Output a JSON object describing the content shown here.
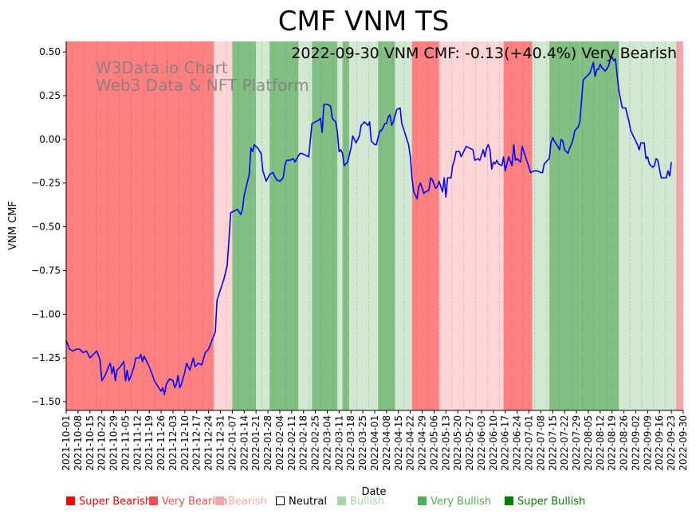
{
  "chart_data": {
    "type": "line",
    "title": "CMF VNM TS",
    "subtitle": "2022-09-30 VNM CMF: -0.13(+40.4%) Very Bearish",
    "watermark": [
      "W3Data.io Chart",
      "Web3 Data & NFT Platform"
    ],
    "xlabel": "Date",
    "ylabel": "VNM CMF",
    "ylim": [
      -1.55,
      0.56
    ],
    "yticks": [
      "0.50",
      "0.25",
      "0.00",
      "−0.25",
      "−0.50",
      "−0.75",
      "−1.00",
      "−1.25",
      "−1.50"
    ],
    "ytick_values": [
      0.5,
      0.25,
      0.0,
      -0.25,
      -0.5,
      -0.75,
      -1.0,
      -1.25,
      -1.5
    ],
    "xticks": [
      "2021-10-01",
      "2021-10-08",
      "2021-10-15",
      "2021-10-22",
      "2021-10-29",
      "2021-11-05",
      "2021-11-12",
      "2021-11-19",
      "2021-11-26",
      "2021-12-03",
      "2021-12-10",
      "2021-12-17",
      "2021-12-24",
      "2021-12-31",
      "2022-01-07",
      "2022-01-14",
      "2022-01-21",
      "2022-01-28",
      "2022-02-04",
      "2022-02-11",
      "2022-02-18",
      "2022-02-25",
      "2022-03-04",
      "2022-03-11",
      "2022-03-18",
      "2022-03-25",
      "2022-04-01",
      "2022-04-08",
      "2022-04-15",
      "2022-04-22",
      "2022-04-29",
      "2022-05-06",
      "2022-05-13",
      "2022-05-20",
      "2022-05-27",
      "2022-06-03",
      "2022-06-10",
      "2022-06-17",
      "2022-06-24",
      "2022-07-01",
      "2022-07-08",
      "2022-07-15",
      "2022-07-22",
      "2022-07-29",
      "2022-08-05",
      "2022-08-12",
      "2022-08-19",
      "2022-08-26",
      "2022-09-02",
      "2022-09-09",
      "2022-09-16",
      "2022-09-23",
      "2022-09-30"
    ],
    "x_range_days": [
      0,
      364
    ],
    "series": [
      {
        "name": "VNM CMF",
        "color": "#0000ff",
        "points": [
          [
            0,
            -1.15
          ],
          [
            2,
            -1.2
          ],
          [
            4,
            -1.21
          ],
          [
            6,
            -1.2
          ],
          [
            8,
            -1.2
          ],
          [
            10,
            -1.22
          ],
          [
            12,
            -1.21
          ],
          [
            14,
            -1.25
          ],
          [
            16,
            -1.23
          ],
          [
            18,
            -1.21
          ],
          [
            20,
            -1.26
          ],
          [
            21,
            -1.38
          ],
          [
            23,
            -1.35
          ],
          [
            25,
            -1.3
          ],
          [
            26,
            -1.28
          ],
          [
            27,
            -1.34
          ],
          [
            28,
            -1.3
          ],
          [
            29,
            -1.38
          ],
          [
            30,
            -1.32
          ],
          [
            32,
            -1.3
          ],
          [
            34,
            -1.27
          ],
          [
            35,
            -1.38
          ],
          [
            36,
            -1.32
          ],
          [
            37,
            -1.38
          ],
          [
            38,
            -1.36
          ],
          [
            40,
            -1.3
          ],
          [
            41,
            -1.25
          ],
          [
            43,
            -1.25
          ],
          [
            44,
            -1.23
          ],
          [
            45,
            -1.27
          ],
          [
            46,
            -1.24
          ],
          [
            47,
            -1.26
          ],
          [
            49,
            -1.3
          ],
          [
            51,
            -1.35
          ],
          [
            52,
            -1.38
          ],
          [
            54,
            -1.41
          ],
          [
            56,
            -1.44
          ],
          [
            57,
            -1.42
          ],
          [
            58,
            -1.46
          ],
          [
            59,
            -1.4
          ],
          [
            61,
            -1.37
          ],
          [
            63,
            -1.38
          ],
          [
            64,
            -1.42
          ],
          [
            65,
            -1.4
          ],
          [
            66,
            -1.35
          ],
          [
            67,
            -1.42
          ],
          [
            68,
            -1.4
          ],
          [
            70,
            -1.33
          ],
          [
            71,
            -1.28
          ],
          [
            72,
            -1.3
          ],
          [
            73,
            -1.32
          ],
          [
            75,
            -1.25
          ],
          [
            76,
            -1.3
          ],
          [
            78,
            -1.28
          ],
          [
            80,
            -1.29
          ],
          [
            82,
            -1.22
          ],
          [
            84,
            -1.2
          ],
          [
            86,
            -1.15
          ],
          [
            88,
            -1.1
          ],
          [
            89,
            -0.92
          ],
          [
            91,
            -0.86
          ],
          [
            93,
            -0.8
          ],
          [
            95,
            -0.72
          ],
          [
            96,
            -0.58
          ],
          [
            97,
            -0.42
          ],
          [
            99,
            -0.41
          ],
          [
            101,
            -0.4
          ],
          [
            103,
            -0.43
          ],
          [
            104,
            -0.4
          ],
          [
            105,
            -0.32
          ],
          [
            107,
            -0.24
          ],
          [
            108,
            -0.2
          ],
          [
            109,
            -0.05
          ],
          [
            110,
            -0.07
          ],
          [
            111,
            -0.03
          ],
          [
            113,
            -0.05
          ],
          [
            115,
            -0.08
          ],
          [
            116,
            -0.18
          ],
          [
            118,
            -0.24
          ],
          [
            120,
            -0.2
          ],
          [
            122,
            -0.19
          ],
          [
            124,
            -0.23
          ],
          [
            126,
            -0.24
          ],
          [
            128,
            -0.22
          ],
          [
            129,
            -0.15
          ],
          [
            130,
            -0.12
          ],
          [
            132,
            -0.12
          ],
          [
            134,
            -0.11
          ],
          [
            135,
            -0.13
          ],
          [
            136,
            -0.11
          ],
          [
            138,
            -0.08
          ],
          [
            139,
            -0.08
          ],
          [
            141,
            -0.09
          ],
          [
            143,
            -0.1
          ],
          [
            144,
            -0.01
          ],
          [
            145,
            0.09
          ],
          [
            147,
            0.1
          ],
          [
            149,
            0.11
          ],
          [
            150,
            0.12
          ],
          [
            151,
            0.04
          ],
          [
            152,
            0.2
          ],
          [
            154,
            0.2
          ],
          [
            156,
            0.19
          ],
          [
            157,
            0.12
          ],
          [
            159,
            0.1
          ],
          [
            160,
            0.04
          ],
          [
            161,
            -0.07
          ],
          [
            162,
            -0.06
          ],
          [
            163,
            -0.08
          ],
          [
            164,
            -0.15
          ],
          [
            166,
            -0.13
          ],
          [
            168,
            -0.05
          ],
          [
            169,
            0.02
          ],
          [
            171,
            -0.02
          ],
          [
            173,
            0.02
          ],
          [
            174,
            0.08
          ],
          [
            176,
            0.1
          ],
          [
            178,
            0.08
          ],
          [
            179,
            0.1
          ],
          [
            180,
            -0.01
          ],
          [
            182,
            -0.03
          ],
          [
            183,
            -0.03
          ],
          [
            185,
            0.05
          ],
          [
            186,
            0.05
          ],
          [
            188,
            0.09
          ],
          [
            189,
            0.09
          ],
          [
            190,
            0.13
          ],
          [
            191,
            0.14
          ],
          [
            192,
            0.08
          ],
          [
            193,
            0.1
          ],
          [
            195,
            0.17
          ],
          [
            197,
            0.18
          ],
          [
            198,
            0.09
          ],
          [
            200,
            0.03
          ],
          [
            202,
            -0.03
          ],
          [
            203,
            -0.1
          ],
          [
            204,
            -0.22
          ],
          [
            205,
            -0.3
          ],
          [
            207,
            -0.34
          ],
          [
            208,
            -0.27
          ],
          [
            209,
            -0.25
          ],
          [
            211,
            -0.31
          ],
          [
            212,
            -0.3
          ],
          [
            214,
            -0.29
          ],
          [
            215,
            -0.22
          ],
          [
            216,
            -0.23
          ],
          [
            218,
            -0.28
          ],
          [
            219,
            -0.27
          ],
          [
            220,
            -0.24
          ],
          [
            222,
            -0.3
          ],
          [
            223,
            -0.22
          ],
          [
            224,
            -0.33
          ],
          [
            225,
            -0.22
          ],
          [
            227,
            -0.22
          ],
          [
            228,
            -0.15
          ],
          [
            229,
            -0.12
          ],
          [
            230,
            -0.07
          ],
          [
            232,
            -0.07
          ],
          [
            233,
            -0.1
          ],
          [
            235,
            -0.06
          ],
          [
            236,
            -0.04
          ],
          [
            238,
            -0.05
          ],
          [
            240,
            -0.06
          ],
          [
            241,
            -0.12
          ],
          [
            243,
            -0.11
          ],
          [
            244,
            -0.12
          ],
          [
            246,
            -0.06
          ],
          [
            247,
            -0.1
          ],
          [
            248,
            -0.05
          ],
          [
            249,
            -0.03
          ],
          [
            250,
            -0.06
          ],
          [
            251,
            -0.17
          ],
          [
            252,
            -0.13
          ],
          [
            253,
            -0.14
          ],
          [
            254,
            -0.12
          ],
          [
            255,
            -0.14
          ],
          [
            257,
            -0.15
          ],
          [
            258,
            -0.1
          ],
          [
            259,
            -0.18
          ],
          [
            260,
            -0.14
          ],
          [
            261,
            -0.1
          ],
          [
            263,
            -0.15
          ],
          [
            264,
            -0.03
          ],
          [
            265,
            -0.12
          ],
          [
            266,
            -0.11
          ],
          [
            267,
            -0.12
          ],
          [
            268,
            -0.13
          ],
          [
            269,
            -0.04
          ],
          [
            271,
            -0.1
          ],
          [
            273,
            -0.16
          ],
          [
            274,
            -0.19
          ],
          [
            276,
            -0.18
          ],
          [
            278,
            -0.18
          ],
          [
            280,
            -0.19
          ],
          [
            281,
            -0.19
          ],
          [
            282,
            -0.14
          ],
          [
            285,
            -0.11
          ],
          [
            286,
            -0.02
          ],
          [
            287,
            0.01
          ],
          [
            288,
            -0.01
          ],
          [
            290,
            -0.04
          ],
          [
            291,
            -0.06
          ],
          [
            292,
            0.0
          ],
          [
            293,
            -0.01
          ],
          [
            294,
            -0.06
          ],
          [
            296,
            -0.08
          ],
          [
            297,
            -0.05
          ],
          [
            298,
            -0.03
          ],
          [
            299,
            0.0
          ],
          [
            300,
            0.05
          ],
          [
            302,
            0.07
          ],
          [
            303,
            0.1
          ],
          [
            305,
            0.34
          ],
          [
            307,
            0.36
          ],
          [
            309,
            0.38
          ],
          [
            311,
            0.44
          ],
          [
            312,
            0.36
          ],
          [
            313,
            0.4
          ],
          [
            314,
            0.4
          ],
          [
            315,
            0.43
          ],
          [
            316,
            0.41
          ],
          [
            317,
            0.4
          ],
          [
            318,
            0.39
          ],
          [
            320,
            0.42
          ],
          [
            321,
            0.46
          ],
          [
            322,
            0.47
          ],
          [
            323,
            0.45
          ],
          [
            324,
            0.46
          ],
          [
            326,
            0.28
          ],
          [
            328,
            0.18
          ],
          [
            330,
            0.18
          ],
          [
            332,
            0.1
          ],
          [
            333,
            0.05
          ],
          [
            335,
            0.01
          ],
          [
            337,
            -0.03
          ],
          [
            338,
            -0.06
          ],
          [
            339,
            -0.02
          ],
          [
            341,
            -0.02
          ],
          [
            342,
            -0.11
          ],
          [
            343,
            -0.1
          ],
          [
            344,
            -0.14
          ],
          [
            345,
            -0.15
          ],
          [
            346,
            -0.16
          ],
          [
            347,
            -0.15
          ],
          [
            348,
            -0.11
          ],
          [
            349,
            -0.12
          ],
          [
            351,
            -0.22
          ],
          [
            354,
            -0.22
          ],
          [
            355,
            -0.18
          ],
          [
            356,
            -0.21
          ],
          [
            357,
            -0.13
          ]
        ]
      }
    ],
    "sentiment_bands": [
      {
        "start": 0,
        "end": 87,
        "category": "Super Bearish"
      },
      {
        "start": 87,
        "end": 98,
        "category": "Bearish"
      },
      {
        "start": 98,
        "end": 112,
        "category": "Very Bullish"
      },
      {
        "start": 112,
        "end": 120,
        "category": "Bullish"
      },
      {
        "start": 120,
        "end": 137,
        "category": "Very Bullish"
      },
      {
        "start": 137,
        "end": 145,
        "category": "Bullish"
      },
      {
        "start": 145,
        "end": 160,
        "category": "Very Bullish"
      },
      {
        "start": 160,
        "end": 163,
        "category": "Bullish"
      },
      {
        "start": 163,
        "end": 167,
        "category": "Very Bullish"
      },
      {
        "start": 167,
        "end": 184,
        "category": "Bullish"
      },
      {
        "start": 184,
        "end": 194,
        "category": "Very Bullish"
      },
      {
        "start": 194,
        "end": 204,
        "category": "Bullish"
      },
      {
        "start": 204,
        "end": 220,
        "category": "Super Bearish"
      },
      {
        "start": 220,
        "end": 247,
        "category": "Bearish"
      },
      {
        "start": 247,
        "end": 258,
        "category": "Bearish"
      },
      {
        "start": 258,
        "end": 275,
        "category": "Super Bearish"
      },
      {
        "start": 275,
        "end": 285,
        "category": "Bullish"
      },
      {
        "start": 285,
        "end": 303,
        "category": "Very Bullish"
      },
      {
        "start": 303,
        "end": 312,
        "category": "Very Bullish"
      },
      {
        "start": 312,
        "end": 326,
        "category": "Very Bullish"
      },
      {
        "start": 326,
        "end": 360,
        "category": "Bullish"
      },
      {
        "start": 360,
        "end": 365,
        "category": "Very Bearish"
      }
    ],
    "legend": {
      "position": "bottom",
      "items": [
        {
          "label": "Super Bearish",
          "color": "#ff0000"
        },
        {
          "label": "Very Bearish",
          "color": "#f05050"
        },
        {
          "label": "Bearish",
          "color": "#f4a6a6"
        },
        {
          "label": "Neutral",
          "color": "#000000"
        },
        {
          "label": "Bullish",
          "color": "#a5d6a7"
        },
        {
          "label": "Very Bullish",
          "color": "#4caf50"
        },
        {
          "label": "Super Bullish",
          "color": "#008000"
        }
      ]
    },
    "band_colors": {
      "Super Bearish": "#ff8080",
      "Very Bearish": "#f9a6a6",
      "Bearish": "#ffd5d5",
      "Neutral": "#ffffff",
      "Bullish": "#d2e8d0",
      "Very Bullish": "#82bf82",
      "Super Bullish": "#4f9f4f"
    }
  }
}
